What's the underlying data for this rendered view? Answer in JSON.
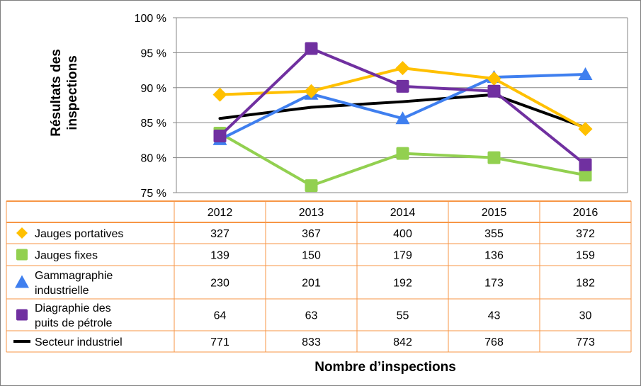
{
  "chart_data": {
    "type": "line",
    "title": "",
    "ylabel_lines": [
      "Résultats des",
      "inspections"
    ],
    "xlabel": "Nombre d’inspections",
    "categories": [
      "2012",
      "2013",
      "2014",
      "2015",
      "2016"
    ],
    "ylim": [
      75,
      100
    ],
    "ytick_values": [
      75,
      80,
      85,
      90,
      95,
      100
    ],
    "yticks": [
      "75 %",
      "80 %",
      "85 %",
      "90 %",
      "95 %",
      "100 %"
    ],
    "series": [
      {
        "name": "Jauges portatives",
        "label_lines": [
          "Jauges portatives"
        ],
        "marker": "diamond",
        "color": "#FFC000",
        "values": [
          89.0,
          89.5,
          92.8,
          91.3,
          84.1
        ],
        "table": [
          "327",
          "367",
          "400",
          "355",
          "372"
        ]
      },
      {
        "name": "Jauges fixes",
        "label_lines": [
          "Jauges fixes"
        ],
        "marker": "square",
        "color": "#92D050",
        "values": [
          83.5,
          76.0,
          80.6,
          80.0,
          77.5
        ],
        "table": [
          "139",
          "150",
          "179",
          "136",
          "159"
        ]
      },
      {
        "name": "Gammagraphie industrielle",
        "label_lines": [
          "Gammagraphie",
          "industrielle"
        ],
        "marker": "triangle",
        "color": "#3F7FEF",
        "values": [
          82.6,
          89.1,
          85.6,
          91.5,
          91.9
        ],
        "table": [
          "230",
          "201",
          "192",
          "173",
          "182"
        ]
      },
      {
        "name": "Diagraphie des puits de pétrole",
        "label_lines": [
          "Diagraphie des",
          "puits de pétrole"
        ],
        "marker": "square",
        "color": "#7030A0",
        "values": [
          83.1,
          95.6,
          90.2,
          89.5,
          79.0
        ],
        "table": [
          "64",
          "63",
          "55",
          "43",
          "30"
        ]
      },
      {
        "name": "Secteur industriel",
        "label_lines": [
          "Secteur industriel"
        ],
        "marker": "none",
        "color": "#000000",
        "values": [
          85.6,
          87.2,
          88.0,
          89.0,
          84.3
        ],
        "table": [
          "771",
          "833",
          "842",
          "768",
          "773"
        ]
      }
    ]
  }
}
